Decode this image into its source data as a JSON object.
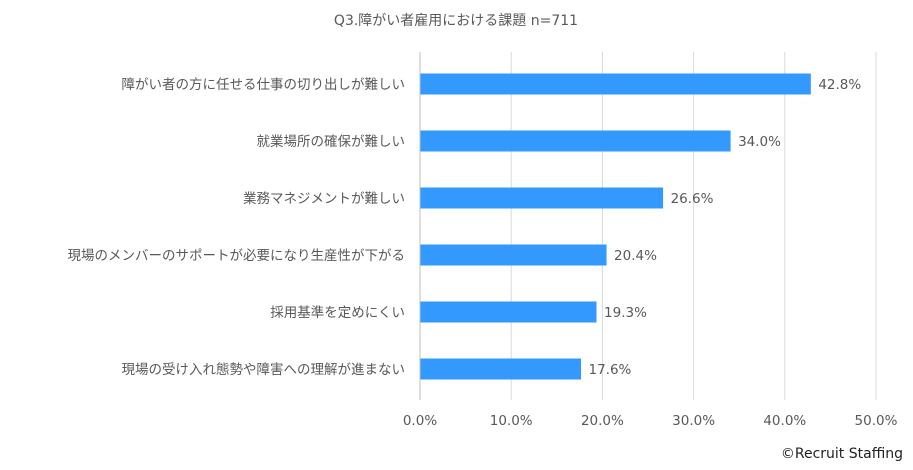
{
  "chart_data": {
    "type": "bar",
    "orientation": "horizontal",
    "title": "Q3.障がい者雇用における課題 n=711",
    "categories": [
      "障がい者の方に任せる仕事の切り出しが難しい",
      "就業場所の確保が難しい",
      "業務マネジメントが難しい",
      "現場のメンバーのサポートが必要になり生産性が下がる",
      "採用基準を定めにくい",
      "現場の受け入れ態勢や障害への理解が進まない"
    ],
    "values": [
      42.8,
      34.0,
      26.6,
      20.4,
      19.3,
      17.6
    ],
    "data_labels": [
      "42.8%",
      "34.0%",
      "26.6%",
      "20.4%",
      "19.3%",
      "17.6%"
    ],
    "xlim": [
      0,
      50
    ],
    "xticks": [
      0,
      10,
      20,
      30,
      40,
      50
    ],
    "xtick_labels": [
      "0.0%",
      "10.0%",
      "20.0%",
      "30.0%",
      "40.0%",
      "50.0%"
    ],
    "grid": true,
    "legend": "none",
    "bar_color": "#3399ff"
  },
  "credit": "©Recruit Staffing"
}
